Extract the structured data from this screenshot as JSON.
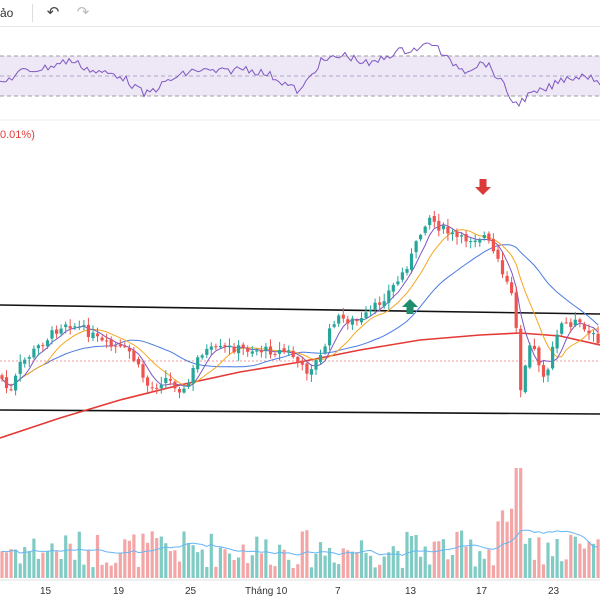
{
  "toolbar": {
    "truncated_text": "ảo",
    "undo_icon": "undo-icon",
    "redo_icon": "redo-icon"
  },
  "price_change_label": "0.01%)",
  "x_axis": {
    "ticks": [
      "15",
      "19",
      "25",
      "Tháng 10",
      "7",
      "13",
      "17",
      "23"
    ]
  },
  "colors": {
    "up": "#26a69a",
    "down": "#ef5350",
    "ma_fast": "#7e57c2",
    "ma_mid": "#f5a623",
    "ma_slow": "#4a7be0",
    "ma_long": "#e53935",
    "rsi_line": "#7e57c2",
    "rsi_band": "#ede7f6",
    "volume_up": "#80cbc4",
    "volume_down": "#f4a6a6",
    "volume_ma": "#64b5f6",
    "buy_signal": "#1e8e6e",
    "sell_signal": "#d93a3a"
  },
  "chart_data": {
    "type": "candlestick",
    "panels": [
      "rsi",
      "price",
      "volume"
    ],
    "x_tick_labels": [
      "15",
      "19",
      "25",
      "Tháng 10",
      "7",
      "13",
      "17",
      "23"
    ],
    "signals": [
      {
        "type": "buy",
        "near_tick": "13"
      },
      {
        "type": "sell",
        "near_tick": "17"
      }
    ],
    "grid": false
  }
}
